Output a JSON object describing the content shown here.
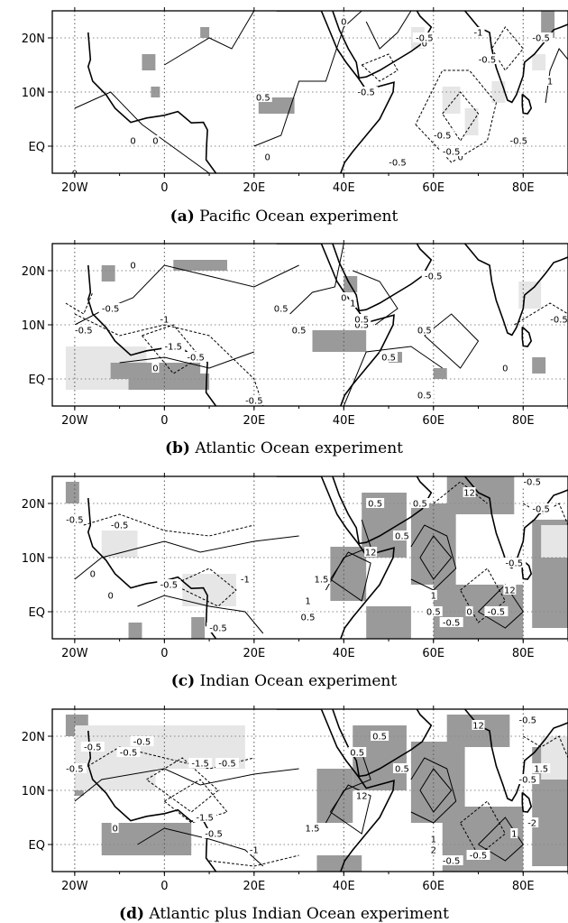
{
  "map_data": {
    "type": "contour-map-panels",
    "x_ticks": [
      "20W",
      "0",
      "20E",
      "40E",
      "60E",
      "80E"
    ],
    "x_tick_values": [
      -20,
      0,
      20,
      40,
      60,
      80
    ],
    "y_ticks": [
      "20N",
      "10N",
      "EQ"
    ],
    "y_tick_values": [
      20,
      10,
      0
    ],
    "lon_range": [
      -25,
      90
    ],
    "lat_range": [
      -5,
      25
    ],
    "shading": {
      "dark": "#9a9a9a",
      "light": "#e6e6e6"
    },
    "panels": [
      {
        "letter": "(a)",
        "title": "Pacific Ocean experiment",
        "contour_labels": [
          "0",
          "0",
          "0",
          "0",
          "0",
          "0.5",
          "-0.5",
          "0",
          "0",
          "-0.5",
          "-1",
          "-0.5",
          "-0.5",
          "-0.5",
          "-0.5",
          "-0.5",
          "1",
          "-0.5"
        ]
      },
      {
        "letter": "(b)",
        "title": "Atlantic Ocean experiment",
        "contour_labels": [
          "0",
          "-0.5",
          "-0.5",
          "0.5",
          "-1",
          "-1.5",
          "-0.5",
          "0",
          "0",
          "0.5",
          "0.5",
          "0.5",
          "1",
          "0.5",
          "0.5",
          "-0.5",
          "-0.5",
          "0",
          "0.5",
          "-0.5"
        ]
      },
      {
        "letter": "(c)",
        "title": "Indian Ocean experiment",
        "contour_labels": [
          "-0.5",
          "-0.5",
          "0",
          "-0.5",
          "-1",
          "0",
          "-0.5",
          "0.5",
          "1.5",
          "1",
          "0.5",
          "12",
          "0.5",
          "0.5",
          "12",
          "-0.5",
          "-0.5",
          "1",
          "0.5",
          "-0.5",
          "12",
          "-0.5",
          "0",
          "-0.5"
        ]
      },
      {
        "letter": "(d)",
        "title": "Atlantic plus Indian Ocean experiment",
        "contour_labels": [
          "-0.5",
          "-0.5",
          "-0.5",
          "-0.5",
          "-1.5",
          "-0.5",
          "0",
          "-1.5",
          "-0.5",
          "-1",
          "1.5",
          "0.5",
          "12",
          "0.5",
          "0.5",
          "12",
          "-0.5",
          "-0.5",
          "1",
          "2",
          "-0.5",
          "-0.5",
          "1.5",
          "-2",
          "1"
        ]
      }
    ]
  }
}
